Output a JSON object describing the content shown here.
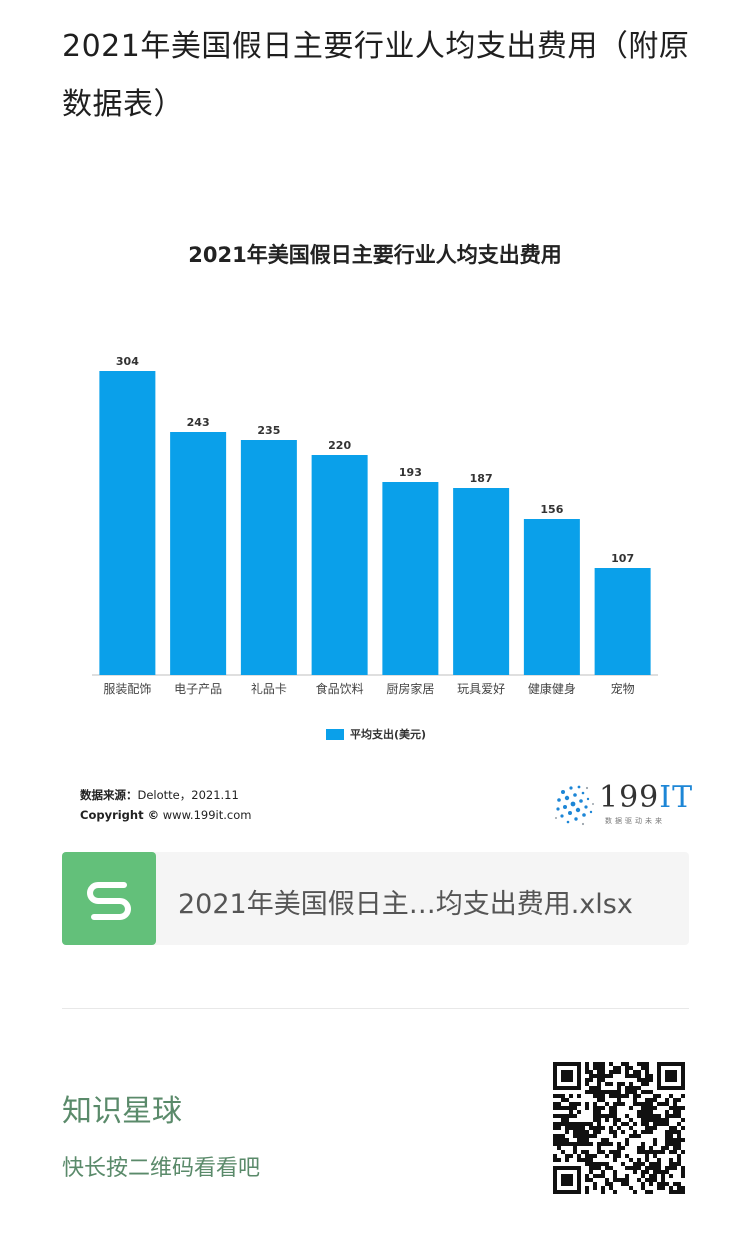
{
  "post": {
    "title": "2021年美国假日主要行业人均支出费用（附原数据表）"
  },
  "chart_data": {
    "type": "bar",
    "title": "2021年美国假日主要行业人均支出费用",
    "categories": [
      "服装配饰",
      "电子产品",
      "礼品卡",
      "食品饮料",
      "厨房家居",
      "玩具爱好",
      "健康健身",
      "宠物"
    ],
    "series": [
      {
        "name": "平均支出(美元)",
        "values": [
          304,
          243,
          235,
          220,
          193,
          187,
          156,
          107
        ]
      }
    ],
    "ylim": [
      0,
      320
    ],
    "grid": false,
    "legend": "bottom",
    "bar_color": "#0aa0ea"
  },
  "source": {
    "label": "数据来源：",
    "value": "Delotte，2021.11",
    "copyright_label": "Copyright ©",
    "copyright_value": "www.199it.com"
  },
  "logo": {
    "main": "199",
    "accent": "IT",
    "sub": "数据驱动未来"
  },
  "file": {
    "name": "2021年美国假日主…均支出费用.xlsx",
    "icon": "spreadsheet-s-icon"
  },
  "promo": {
    "title": "知识星球",
    "subtitle": "快长按二维码看看吧",
    "icon": "qr-code-icon"
  }
}
